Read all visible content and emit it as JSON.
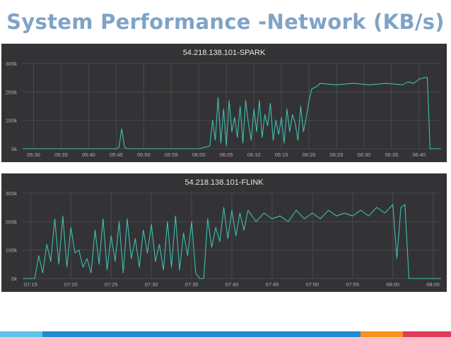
{
  "slide": {
    "title": "System Performance -Network (KB/s)"
  },
  "colors": {
    "title": "#7fa3c6",
    "panel_bg": "#333336",
    "grid": "#4a4a4d",
    "series": "#3fbfae",
    "footer": [
      "#5cc3e9",
      "#1f8bd0",
      "#f7931e",
      "#e03a5a"
    ]
  },
  "chart_data": [
    {
      "type": "line",
      "title": "54.218.138.101-SPARK",
      "ylim": [
        0,
        300
      ],
      "yticks": [
        0,
        100,
        200,
        300
      ],
      "ytick_labels": [
        "0k",
        "100k",
        "200k",
        "300k"
      ],
      "xlim": [
        "05:28",
        "06:44"
      ],
      "xticks": [
        "05:30",
        "05:35",
        "05:40",
        "05:45",
        "05:50",
        "05:55",
        "06:00",
        "06:05",
        "06:10",
        "06:15",
        "06:20",
        "06:25",
        "06:30",
        "06:35",
        "06:40"
      ],
      "grid": true,
      "series": [
        {
          "x": [
            "05:28",
            "05:45",
            "05:45:30",
            "05:46",
            "05:46:30",
            "05:47",
            "06:00",
            "06:02",
            "06:02:30",
            "06:03",
            "06:03:30",
            "06:04",
            "06:04:30",
            "06:05",
            "06:05:30",
            "06:06",
            "06:06:30",
            "06:07",
            "06:07:30",
            "06:08",
            "06:08:30",
            "06:09",
            "06:09:30",
            "06:10",
            "06:10:30",
            "06:11",
            "06:11:30",
            "06:12",
            "06:12:30",
            "06:13",
            "06:13:30",
            "06:14",
            "06:14:30",
            "06:15",
            "06:15:30",
            "06:16",
            "06:16:30",
            "06:17",
            "06:17:30",
            "06:18",
            "06:18:30",
            "06:19",
            "06:19:30",
            "06:20",
            "06:20:30",
            "06:21",
            "06:21:30",
            "06:22",
            "06:25",
            "06:28",
            "06:31",
            "06:34",
            "06:37",
            "06:38",
            "06:39",
            "06:40",
            "06:41",
            "06:41:30",
            "06:42",
            "06:44"
          ],
          "y": [
            0,
            0,
            5,
            70,
            5,
            0,
            0,
            10,
            100,
            30,
            180,
            20,
            140,
            10,
            170,
            60,
            110,
            40,
            150,
            20,
            170,
            90,
            30,
            140,
            60,
            170,
            40,
            120,
            80,
            160,
            30,
            100,
            50,
            110,
            20,
            140,
            60,
            120,
            90,
            30,
            150,
            60,
            110,
            170,
            210,
            215,
            220,
            230,
            225,
            230,
            225,
            230,
            225,
            235,
            230,
            245,
            250,
            250,
            0,
            0
          ]
        }
      ]
    },
    {
      "type": "line",
      "title": "54.218.138.101-FLINK",
      "ylim": [
        0,
        300
      ],
      "yticks": [
        0,
        100,
        200,
        300
      ],
      "ytick_labels": [
        "0k",
        "100k",
        "200k",
        "300k"
      ],
      "xlim": [
        "07:14",
        "08:06"
      ],
      "xticks": [
        "07:15",
        "07:20",
        "07:25",
        "07:30",
        "07:35",
        "07:40",
        "07:45",
        "07:50",
        "07:55",
        "08:00",
        "08:05"
      ],
      "grid": true,
      "series": [
        {
          "x": [
            "07:14",
            "07:15:30",
            "07:16",
            "07:16:30",
            "07:17",
            "07:17:30",
            "07:18",
            "07:18:30",
            "07:19",
            "07:19:30",
            "07:20",
            "07:20:30",
            "07:21",
            "07:21:30",
            "07:22",
            "07:22:30",
            "07:23",
            "07:23:30",
            "07:24",
            "07:24:30",
            "07:25",
            "07:25:30",
            "07:26",
            "07:26:30",
            "07:27",
            "07:27:30",
            "07:28",
            "07:28:30",
            "07:29",
            "07:29:30",
            "07:30",
            "07:30:30",
            "07:31",
            "07:31:30",
            "07:32",
            "07:32:30",
            "07:33",
            "07:33:30",
            "07:34",
            "07:34:30",
            "07:35",
            "07:35:30",
            "07:36",
            "07:36:30",
            "07:37",
            "07:37:30",
            "07:38",
            "07:38:30",
            "07:39",
            "07:39:30",
            "07:40",
            "07:40:30",
            "07:41",
            "07:41:30",
            "07:42",
            "07:43",
            "07:44",
            "07:45",
            "07:46",
            "07:47",
            "07:48",
            "07:49",
            "07:50",
            "07:51",
            "07:52",
            "07:53",
            "07:54",
            "07:55",
            "07:56",
            "07:57",
            "07:58",
            "07:59",
            "08:00",
            "08:00:30",
            "08:01",
            "08:01:30",
            "08:02",
            "08:02:30",
            "08:03",
            "08:06"
          ],
          "y": [
            0,
            0,
            80,
            20,
            120,
            60,
            210,
            50,
            220,
            40,
            180,
            90,
            100,
            40,
            70,
            20,
            170,
            50,
            210,
            30,
            150,
            60,
            200,
            20,
            210,
            70,
            140,
            40,
            170,
            90,
            190,
            60,
            120,
            30,
            200,
            40,
            220,
            30,
            160,
            80,
            200,
            20,
            0,
            0,
            210,
            110,
            180,
            130,
            250,
            140,
            240,
            150,
            230,
            170,
            240,
            200,
            230,
            210,
            220,
            200,
            240,
            210,
            230,
            210,
            240,
            220,
            230,
            220,
            240,
            220,
            250,
            230,
            260,
            70,
            250,
            260,
            0,
            0,
            0,
            0
          ]
        }
      ]
    }
  ]
}
